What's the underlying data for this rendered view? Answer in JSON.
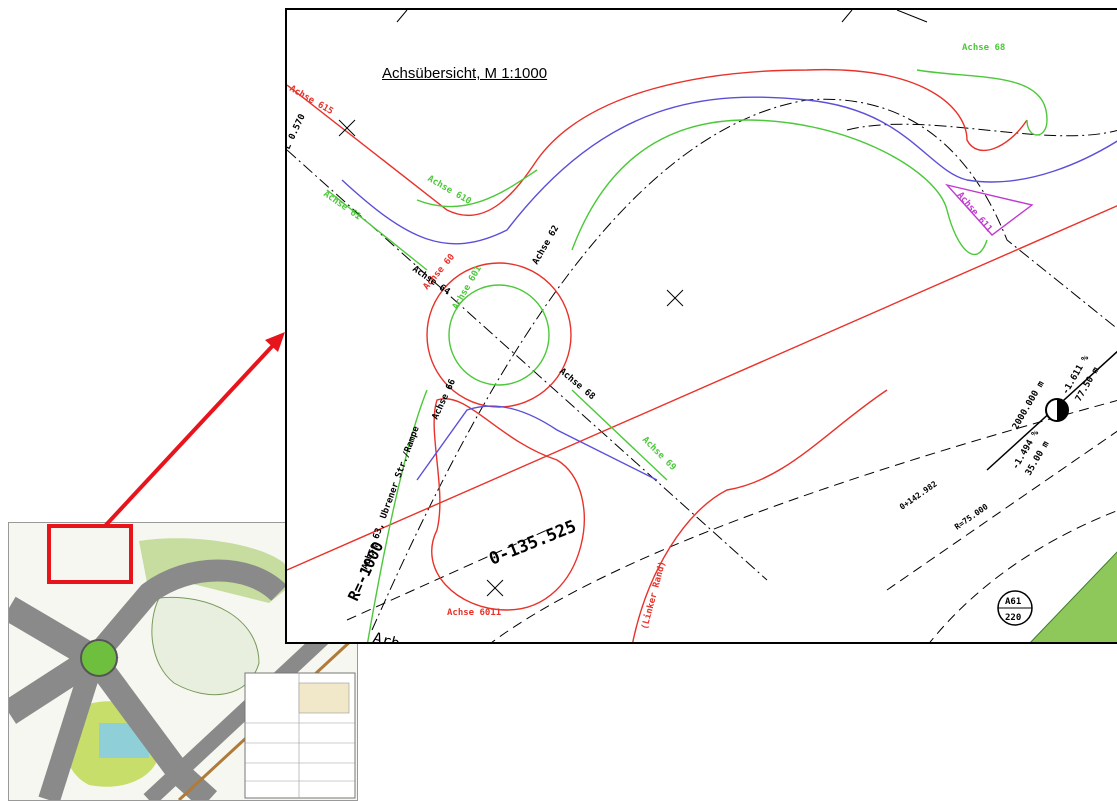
{
  "diagram": {
    "title": "Achsübersicht, M 1:1000",
    "axis_labels": {
      "achse_615": "Achse 615",
      "achse_610": "Achse 610",
      "achse_601": "Achse 601",
      "achse_611": "Achse 611",
      "achse_61": "Achse 61",
      "achse_60": "Achse 60",
      "achse_62": "Achse 62",
      "achse_64": "Achse 64",
      "achse_66": "Achse 66",
      "achse_68": "Achse 68",
      "achse_6011": "Achse 6011",
      "achse_69": "Achse 69",
      "achse_63": "Achse 63, Ubrener Str./Rampe",
      "linker_rand": "(Linker Rand)"
    },
    "annotations": {
      "station_left": "L 0.570",
      "curve_top": "0-135.525",
      "radius_left": "R=-1000",
      "radius_vertical": "2000.000 m",
      "gradient_up": "-1.611 %",
      "length_up": "77.50 m",
      "gradient_down": "-1.494 %",
      "length_down": "35.00 m",
      "station_right": "0+142.982",
      "radius_right": "R=75.000",
      "sign_top": "A61",
      "sign_bottom": "220",
      "cut_text": "Arb"
    },
    "colors": {
      "red": "#e8322a",
      "green": "#4cc83a",
      "blue": "#5b4fd8",
      "magenta": "#c03ad0",
      "highlight": "#e8141c",
      "line": "#000000"
    }
  }
}
